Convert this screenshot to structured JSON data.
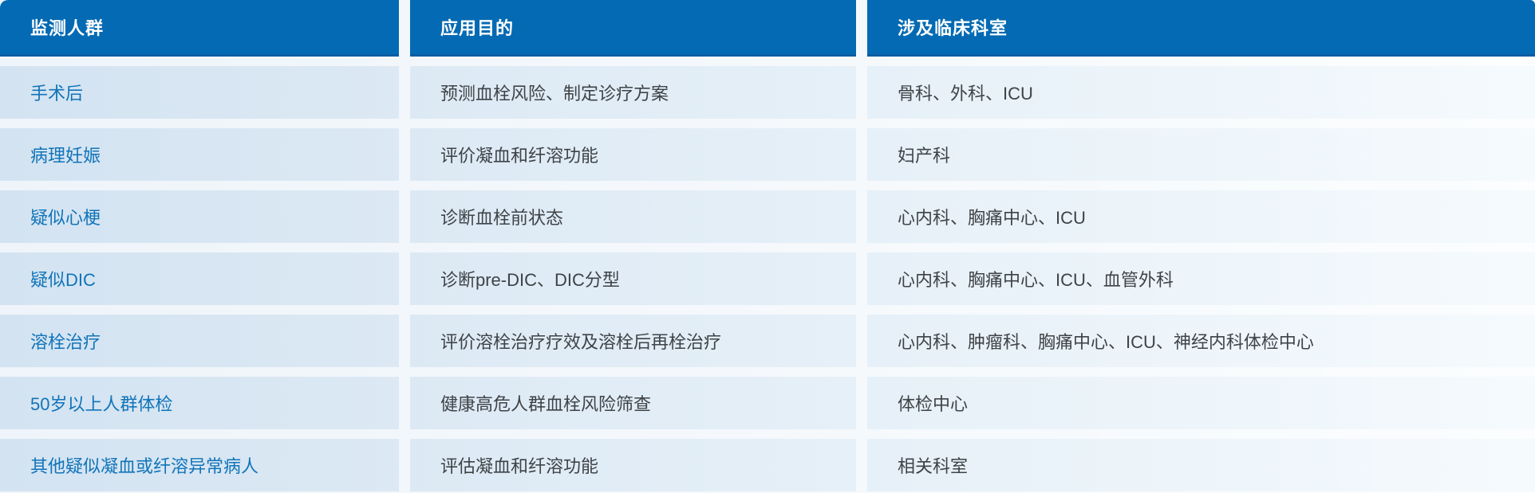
{
  "chart_data": {
    "type": "table",
    "columns": [
      "监测人群",
      "应用目的",
      "涉及临床科室"
    ],
    "rows": [
      [
        "手术后",
        "预测血栓风险、制定诊疗方案",
        "骨科、外科、ICU"
      ],
      [
        "病理妊娠",
        "评价凝血和纤溶功能",
        "妇产科"
      ],
      [
        "疑似心梗",
        "诊断血栓前状态",
        "心内科、胸痛中心、ICU"
      ],
      [
        "疑似DIC",
        "诊断pre-DIC、DIC分型",
        "心内科、胸痛中心、ICU、血管外科"
      ],
      [
        "溶栓治疗",
        "评价溶栓治疗疗效及溶栓后再栓治疗",
        "心内科、肿瘤科、胸痛中心、ICU、神经内科体检中心"
      ],
      [
        "50岁以上人群体检",
        "健康高危人群血栓风险筛查",
        "体检中心"
      ],
      [
        "其他疑似凝血或纤溶异常病人",
        "评估凝血和纤溶功能",
        "相关科室"
      ]
    ],
    "layout": {
      "grid": "off",
      "header_position": "top"
    }
  },
  "colors": {
    "header_bg": "#046ab3",
    "header_border_bottom": "#0c5da2",
    "header_text": "#ffffff",
    "row_gradient_start": "#d3e3f1",
    "row_gradient_end": "#f5fafd",
    "population_column_text": "#1174b9",
    "body_text": "#3e4347",
    "gap_background": "#ffffff"
  }
}
